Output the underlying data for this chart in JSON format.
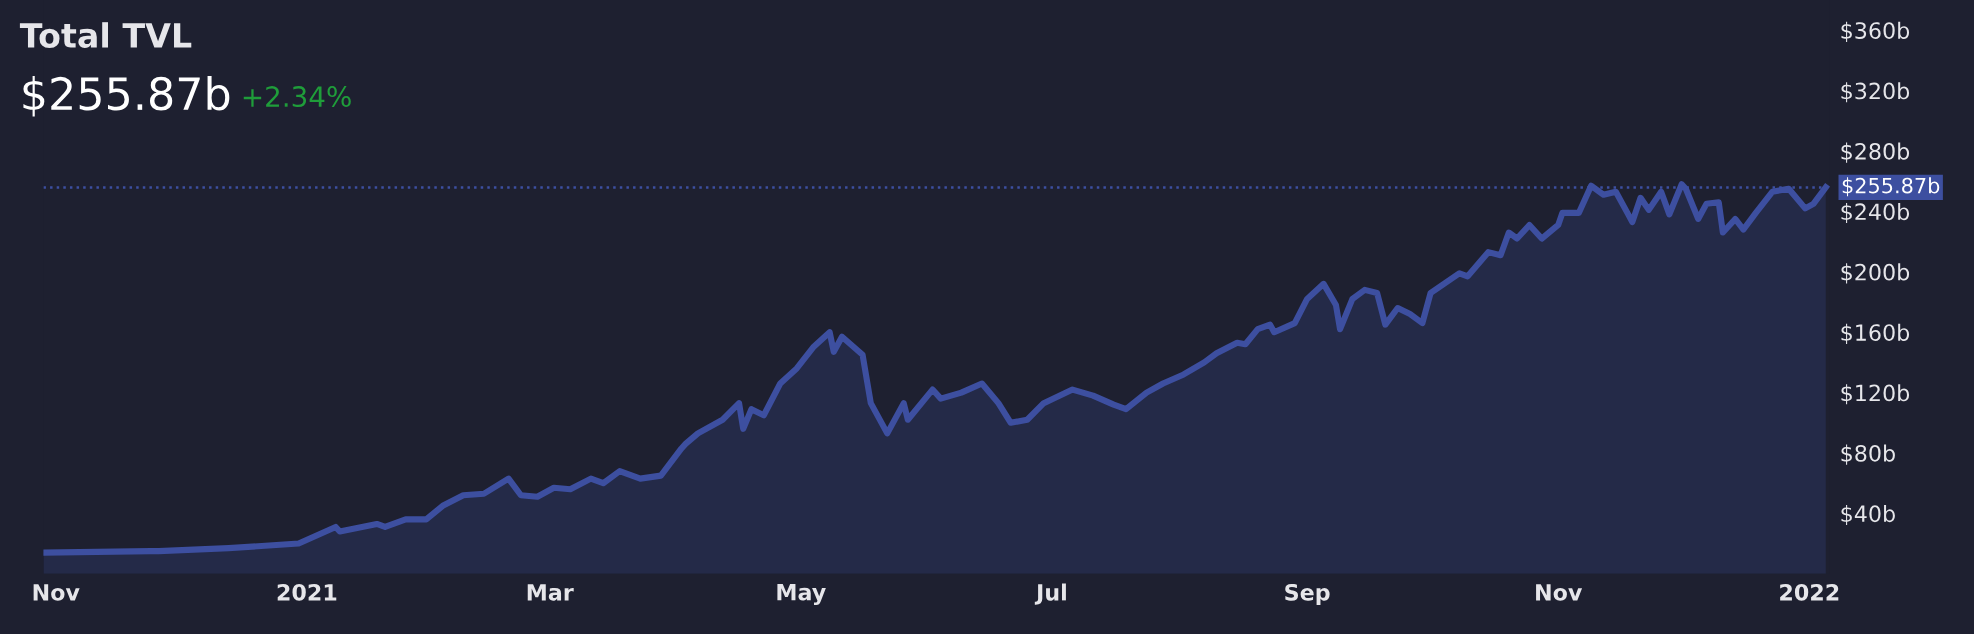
{
  "chart_data": {
    "type": "area",
    "title": "Total TVL",
    "subtitle": "$255.87b",
    "annotations": [
      "+2.34%"
    ],
    "x": [
      "2020-10-29",
      "2020-11-24",
      "2020-11-26",
      "2020-12-13",
      "2020-12-30",
      "2021-01-08",
      "2021-01-09",
      "2021-01-18",
      "2021-01-20",
      "2021-01-25",
      "2021-01-30",
      "2021-02-03",
      "2021-02-08",
      "2021-02-13",
      "2021-02-19",
      "2021-02-22",
      "2021-02-26",
      "2021-03-02",
      "2021-03-06",
      "2021-03-11",
      "2021-03-14",
      "2021-03-18",
      "2021-03-23",
      "2021-03-28",
      "2021-04-02",
      "2021-04-03",
      "2021-04-06",
      "2021-04-12",
      "2021-04-16",
      "2021-04-17",
      "2021-04-19",
      "2021-04-22",
      "2021-04-26",
      "2021-04-30",
      "2021-05-04",
      "2021-05-08",
      "2021-05-09",
      "2021-05-11",
      "2021-05-16",
      "2021-05-18",
      "2021-05-22",
      "2021-05-26",
      "2021-05-27",
      "2021-06-02",
      "2021-06-04",
      "2021-06-09",
      "2021-06-14",
      "2021-06-18",
      "2021-06-21",
      "2021-06-25",
      "2021-06-29",
      "2021-07-06",
      "2021-07-11",
      "2021-07-16",
      "2021-07-19",
      "2021-07-24",
      "2021-07-28",
      "2021-08-02",
      "2021-08-07",
      "2021-08-10",
      "2021-08-15",
      "2021-08-17",
      "2021-08-20",
      "2021-08-23",
      "2021-08-24",
      "2021-08-29",
      "2021-09-01",
      "2021-09-05",
      "2021-09-08",
      "2021-09-09",
      "2021-09-12",
      "2021-09-15",
      "2021-09-18",
      "2021-09-20",
      "2021-09-23",
      "2021-09-26",
      "2021-09-29",
      "2021-10-01",
      "2021-10-08",
      "2021-10-10",
      "2021-10-15",
      "2021-10-18",
      "2021-10-20",
      "2021-10-22",
      "2021-10-25",
      "2021-10-28",
      "2021-11-01",
      "2021-11-02",
      "2021-11-06",
      "2021-11-09",
      "2021-11-12",
      "2021-11-15",
      "2021-11-18",
      "2021-11-19",
      "2021-11-21",
      "2021-11-23",
      "2021-11-26",
      "2021-11-28",
      "2021-12-01",
      "2021-12-02",
      "2021-12-05",
      "2021-12-07",
      "2021-12-10",
      "2021-12-11",
      "2021-12-14",
      "2021-12-16",
      "2021-12-19",
      "2021-12-23",
      "2021-12-27",
      "2021-12-31",
      "2022-01-02",
      "2022-01-05"
    ],
    "series": [
      {
        "color": "#3d4fa0",
        "values": [
          14,
          15,
          15,
          17,
          20,
          31,
          28,
          33,
          31,
          36,
          36,
          45,
          52,
          53,
          63,
          52,
          51,
          57,
          56,
          63,
          60,
          68,
          63,
          65,
          83,
          86,
          93,
          102,
          113,
          96,
          109,
          105,
          126,
          136,
          150,
          160,
          147,
          157,
          145,
          113,
          93,
          113,
          102,
          122,
          116,
          120,
          126,
          113,
          100,
          102,
          113,
          122,
          118,
          112,
          109,
          120,
          126,
          132,
          140,
          146,
          153,
          152,
          162,
          165,
          160,
          166,
          182,
          192,
          178,
          162,
          182,
          188,
          186,
          165,
          176,
          172,
          166,
          186,
          199,
          197,
          213,
          211,
          226,
          222,
          231,
          222,
          231,
          239,
          239,
          257,
          251,
          253,
          238,
          233,
          249,
          241,
          253,
          238,
          258,
          255,
          235,
          245,
          246,
          226,
          235,
          228,
          239,
          253,
          255,
          242,
          245,
          256
        ]
      }
    ],
    "xlim": [
      "2020-10-29",
      "2022-01-06"
    ],
    "xticks": [
      {
        "value": "2020-11-01",
        "label": "Nov"
      },
      {
        "value": "2021-01-01",
        "label": "2021"
      },
      {
        "value": "2021-03-01",
        "label": "Mar"
      },
      {
        "value": "2021-05-01",
        "label": "May"
      },
      {
        "value": "2021-07-01",
        "label": "Jul"
      },
      {
        "value": "2021-09-01",
        "label": "Sep"
      },
      {
        "value": "2021-11-01",
        "label": "Nov"
      },
      {
        "value": "2022-01-01",
        "label": "2022"
      }
    ],
    "ylim": [
      0,
      380
    ],
    "yticks": [
      {
        "value": 40,
        "label": "$40b"
      },
      {
        "value": 80,
        "label": "$80b"
      },
      {
        "value": 120,
        "label": "$120b"
      },
      {
        "value": 160,
        "label": "$160b"
      },
      {
        "value": 200,
        "label": "$200b"
      },
      {
        "value": 240,
        "label": "$240b"
      },
      {
        "value": 280,
        "label": "$280b"
      },
      {
        "value": 320,
        "label": "$320b"
      },
      {
        "value": 360,
        "label": "$360b"
      }
    ],
    "ref_lines": [
      {
        "axis": "y",
        "value": 255.87,
        "label": "$255.87b",
        "color": "#3d4fa0",
        "line_style": "dotted"
      }
    ],
    "grid": false,
    "legend": false
  }
}
